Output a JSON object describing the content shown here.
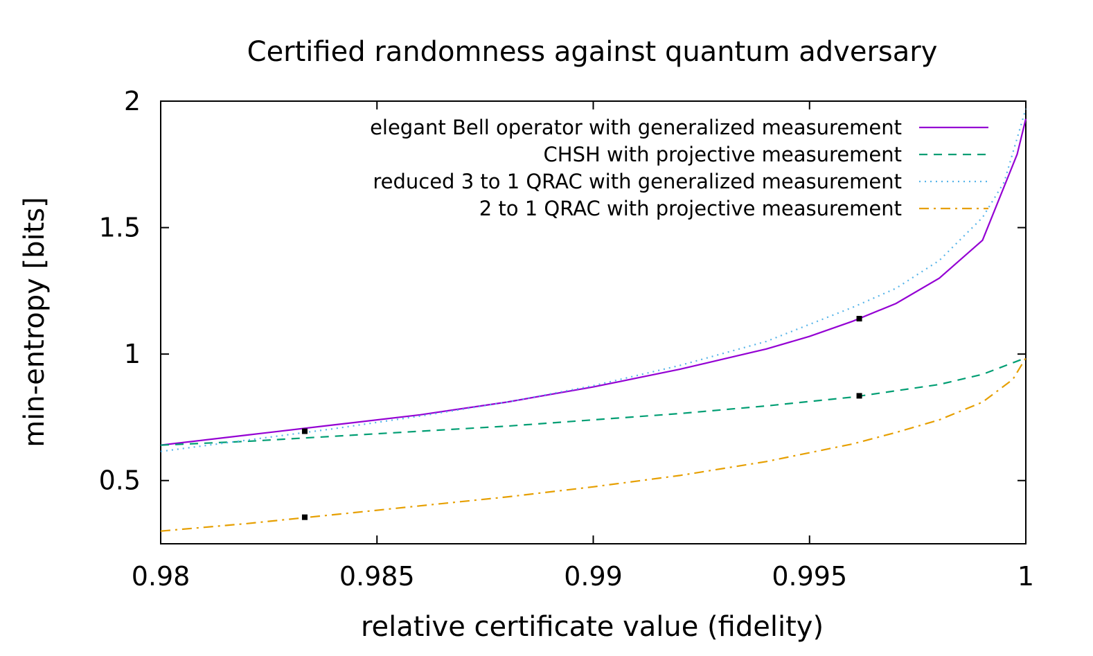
{
  "chart_data": {
    "type": "line",
    "title": "Certified randomness against quantum adversary",
    "xlabel": "relative certificate value (fidelity)",
    "ylabel": "min-entropy [bits]",
    "xlim": [
      0.98,
      1.0
    ],
    "ylim": [
      0.25,
      2.0
    ],
    "xticks": [
      0.98,
      0.985,
      0.99,
      0.995,
      1.0
    ],
    "xtick_labels": [
      "0.98",
      "0.985",
      "0.99",
      "0.995",
      "1"
    ],
    "yticks": [
      0.5,
      1.0,
      1.5,
      2.0
    ],
    "ytick_labels": [
      "0.5",
      "1",
      "1.5",
      "2"
    ],
    "grid": false,
    "legend_position": "top-right",
    "series": [
      {
        "name": "elegant Bell operator with generalized measurement",
        "color": "#9400d3",
        "dash": "solid",
        "x": [
          0.98,
          0.982,
          0.984,
          0.986,
          0.988,
          0.99,
          0.991,
          0.992,
          0.993,
          0.994,
          0.995,
          0.996,
          0.997,
          0.998,
          0.999,
          0.9998,
          1.0
        ],
        "y": [
          0.64,
          0.68,
          0.72,
          0.76,
          0.81,
          0.87,
          0.905,
          0.94,
          0.98,
          1.02,
          1.07,
          1.13,
          1.2,
          1.3,
          1.45,
          1.79,
          1.93
        ]
      },
      {
        "name": "CHSH with projective measurement",
        "color": "#009e73",
        "dash": "dashed",
        "x": [
          0.98,
          0.982,
          0.984,
          0.986,
          0.988,
          0.99,
          0.992,
          0.994,
          0.996,
          0.997,
          0.998,
          0.999,
          1.0
        ],
        "y": [
          0.64,
          0.655,
          0.675,
          0.695,
          0.715,
          0.74,
          0.765,
          0.795,
          0.83,
          0.855,
          0.88,
          0.92,
          0.985
        ]
      },
      {
        "name": "reduced 3 to 1 QRAC with generalized measurement",
        "color": "#56b4e9",
        "dash": "dotted",
        "x": [
          0.98,
          0.982,
          0.984,
          0.986,
          0.988,
          0.99,
          0.992,
          0.994,
          0.996,
          0.997,
          0.998,
          0.999,
          0.9995,
          1.0
        ],
        "y": [
          0.615,
          0.66,
          0.705,
          0.755,
          0.81,
          0.875,
          0.955,
          1.05,
          1.185,
          1.26,
          1.37,
          1.54,
          1.68,
          1.97
        ]
      },
      {
        "name": "2 to 1 QRAC with projective measurement",
        "color": "#e69f00",
        "dash": "dashdot",
        "x": [
          0.98,
          0.982,
          0.984,
          0.986,
          0.988,
          0.99,
          0.992,
          0.994,
          0.996,
          0.997,
          0.998,
          0.999,
          0.9997,
          1.0
        ],
        "y": [
          0.3,
          0.33,
          0.365,
          0.4,
          0.435,
          0.475,
          0.52,
          0.575,
          0.645,
          0.69,
          0.74,
          0.81,
          0.9,
          0.985
        ]
      }
    ],
    "markers": [
      {
        "x": 0.98333,
        "y": 0.695
      },
      {
        "x": 0.98333,
        "y": 0.355
      },
      {
        "x": 0.99615,
        "y": 1.14
      },
      {
        "x": 0.99615,
        "y": 0.835
      }
    ]
  }
}
